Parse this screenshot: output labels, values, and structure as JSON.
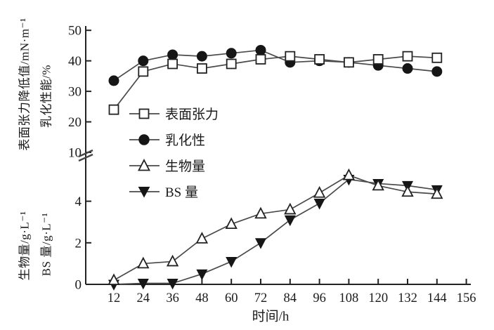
{
  "chart_data": {
    "type": "line",
    "title": "",
    "xlabel": "时间/h",
    "ylabels": {
      "outer_top": "表面张力降低值/mN·m⁻¹",
      "outer_bottom": "生物量/g·L⁻¹",
      "inner_top": "乳化性能/%",
      "inner_bottom": "BS 量/g·L⁻¹"
    },
    "x": [
      12,
      24,
      36,
      48,
      60,
      72,
      84,
      96,
      108,
      120,
      132,
      144
    ],
    "x_ticks": [
      12,
      24,
      36,
      48,
      60,
      72,
      84,
      96,
      108,
      120,
      132,
      144,
      156
    ],
    "axis": {
      "upper_ticks": [
        10,
        20,
        30,
        40,
        50
      ],
      "lower_ticks": [
        0,
        2,
        4
      ],
      "upper_range": [
        10,
        50
      ],
      "lower_range": [
        0,
        6
      ],
      "break_at": 10,
      "grid": false,
      "legend_position": "inside-upper-left"
    },
    "series": [
      {
        "id": "surface-tension",
        "name": "表面张力",
        "marker": "open-square",
        "scale": "upper",
        "values": [
          24,
          36.5,
          39,
          37.5,
          39,
          40.5,
          41.5,
          40.5,
          39.5,
          40.5,
          41.5,
          41
        ]
      },
      {
        "id": "emulsification",
        "name": "乳化性",
        "marker": "filled-circle",
        "scale": "upper",
        "values": [
          33.5,
          40,
          42,
          41.5,
          42.5,
          43.5,
          39.5,
          40,
          39.5,
          38.5,
          37.5,
          36.5
        ]
      },
      {
        "id": "biomass",
        "name": "生物量",
        "marker": "open-triangle-up",
        "scale": "lower",
        "values": [
          0.2,
          1.0,
          1.1,
          2.2,
          2.9,
          3.4,
          3.6,
          4.4,
          5.25,
          4.75,
          4.45,
          4.35
        ]
      },
      {
        "id": "bs-amount",
        "name": "BS 量",
        "marker": "filled-triangle-down",
        "scale": "lower",
        "values": [
          0,
          0.05,
          0.05,
          0.5,
          1.1,
          2.0,
          3.1,
          3.9,
          5.05,
          4.85,
          4.75,
          4.55
        ]
      }
    ],
    "colors": {
      "line": "#4a4a4a",
      "marker": "#161616",
      "text": "#1a1a1a",
      "background": "#ffffff"
    }
  }
}
